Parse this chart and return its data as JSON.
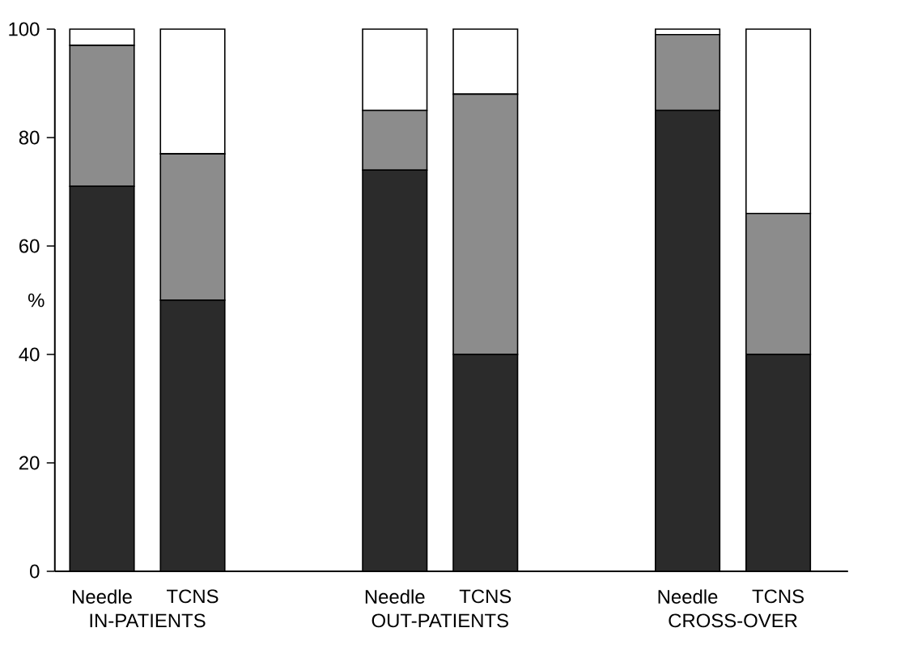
{
  "chart_data": {
    "type": "bar",
    "stacked": true,
    "ylabel": "%",
    "categories": [
      "Needle",
      "TCNS",
      "Needle",
      "TCNS",
      "Needle",
      "TCNS"
    ],
    "series": [
      {
        "color": "#2b2b2b",
        "values": [
          71,
          50,
          74,
          40,
          85,
          40
        ]
      },
      {
        "color": "#8c8c8c",
        "values": [
          26,
          27,
          11,
          48,
          14,
          26
        ]
      },
      {
        "color": "#ffffff",
        "values": [
          3,
          23,
          15,
          12,
          1,
          34
        ]
      }
    ],
    "ylim": [
      0,
      100
    ],
    "yticks": [
      0,
      20,
      40,
      60,
      80,
      100
    ],
    "annotations": [
      "IN-PATIENTS",
      "OUT-PATIENTS",
      "CROSS-OVER"
    ]
  }
}
